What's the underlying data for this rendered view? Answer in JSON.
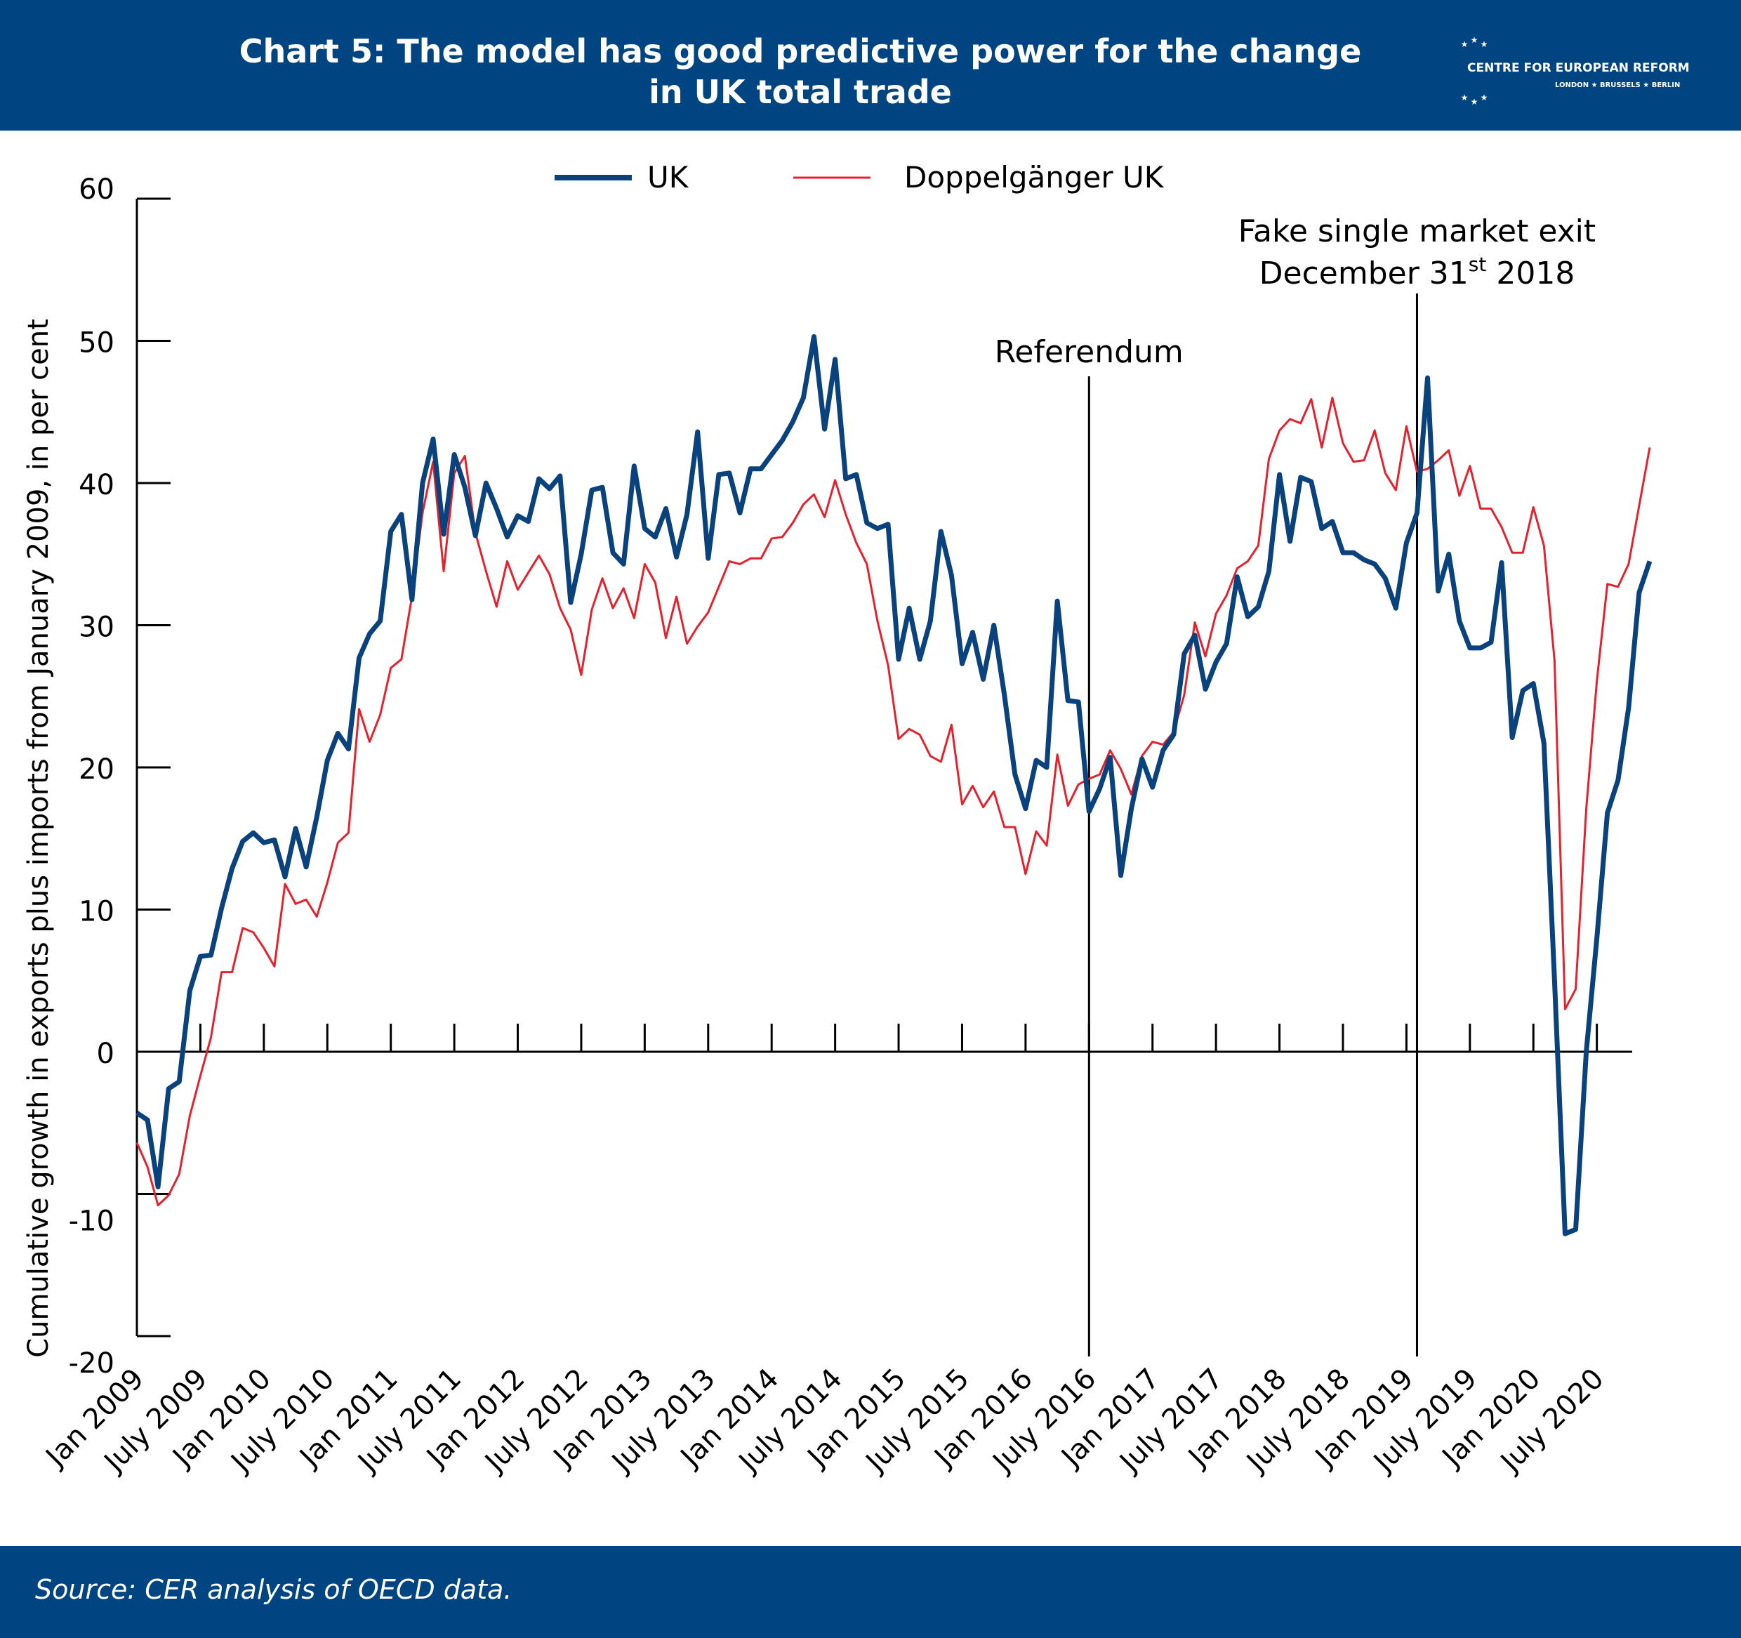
{
  "header": {
    "title_line1": "Chart 5: The model has good predictive power for the change",
    "title_line2": "in UK total trade",
    "logo_text": "CENTRE FOR EUROPEAN REFORM",
    "logo_subtext": "LONDON ★ BRUSSELS ★ BERLIN"
  },
  "colors": {
    "header_bg": "#004582",
    "uk": "#0a427e",
    "doppel": "#e3222e",
    "axis": "#000000"
  },
  "chart_data": {
    "type": "line",
    "title": "Chart 5: The model has good predictive power for the change in UK total trade",
    "ylabel": "Cumulative growth in exports plus imports from January 2009, in per cent",
    "xlabel": "",
    "ylim": [
      -20,
      60
    ],
    "yticks": [
      -20,
      -10,
      0,
      10,
      20,
      30,
      40,
      50,
      60
    ],
    "xlim": [
      0,
      141
    ],
    "xtick_labels": [
      "Jan 2009",
      "July 2009",
      "Jan 2010",
      "July 2010",
      "Jan 2011",
      "July 2011",
      "Jan 2012",
      "July 2012",
      "Jan 2013",
      "July 2013",
      "Jan 2014",
      "July 2014",
      "Jan 2015",
      "July 2015",
      "Jan 2016",
      "July 2016",
      "Jan 2017",
      "July 2017",
      "Jan 2018",
      "July 2018",
      "Jan 2019",
      "July 2019",
      "Jan 2020",
      "July 2020"
    ],
    "legend_position": "top-center",
    "grid": false,
    "series": [
      {
        "name": "UK",
        "color": "#0a427e",
        "values": [
          -4.3,
          -4.8,
          -9.5,
          -2.6,
          -2.1,
          4.3,
          6.7,
          6.8,
          10.1,
          12.9,
          14.8,
          15.4,
          14.7,
          14.9,
          12.3,
          15.7,
          13.0,
          16.5,
          20.5,
          22.4,
          21.3,
          27.7,
          29.4,
          30.3,
          36.6,
          37.8,
          31.8,
          40.0,
          43.1,
          36.4,
          42.0,
          39.7,
          36.3,
          40.0,
          38.2,
          36.2,
          37.7,
          37.3,
          40.3,
          39.6,
          40.5,
          31.6,
          35.0,
          39.5,
          39.7,
          35.1,
          34.3,
          41.2,
          36.8,
          36.2,
          38.2,
          34.8,
          37.8,
          43.6,
          34.7,
          40.6,
          40.7,
          37.9,
          41.0,
          41.0,
          42.0,
          43.0,
          44.3,
          46.0,
          50.3,
          43.8,
          48.7,
          40.3,
          40.6,
          37.2,
          36.8,
          37.1,
          27.6,
          31.2,
          27.6,
          30.3,
          36.6,
          33.5,
          27.3,
          29.5,
          26.2,
          30.0,
          25.1,
          19.5,
          17.1,
          20.5,
          20.0,
          31.7,
          24.7,
          24.6,
          16.9,
          18.5,
          20.7,
          12.4,
          17.1,
          20.6,
          18.6,
          21.2,
          22.3,
          28.0,
          29.3,
          25.5,
          27.4,
          28.7,
          33.4,
          30.6,
          31.3,
          33.8,
          40.6,
          35.9,
          40.4,
          40.1,
          36.8,
          37.3,
          35.1,
          35.1,
          34.6,
          34.3,
          33.3,
          31.2,
          35.8,
          37.9,
          47.4,
          32.4,
          35.0,
          30.3,
          28.4,
          28.4,
          28.8,
          34.4,
          22.1,
          25.4,
          25.9,
          21.7,
          5.0,
          -12.8,
          -12.5,
          0.0,
          8.0,
          16.8,
          19.1,
          24.2,
          32.3,
          34.5
        ]
      },
      {
        "name": "Doppelgänger UK",
        "color": "#e3222e",
        "values": [
          -6.4,
          -8.1,
          -10.8,
          -10.1,
          -8.6,
          -4.5,
          -1.7,
          1.0,
          5.6,
          5.6,
          8.7,
          8.4,
          7.3,
          6.0,
          11.8,
          10.4,
          10.7,
          9.5,
          11.9,
          14.7,
          15.4,
          24.1,
          21.8,
          23.7,
          27.0,
          27.6,
          32.0,
          37.9,
          41.5,
          33.8,
          40.7,
          41.9,
          36.5,
          33.8,
          31.3,
          34.5,
          32.5,
          33.7,
          34.9,
          33.6,
          31.2,
          29.7,
          26.5,
          31.1,
          33.3,
          31.2,
          32.6,
          30.5,
          34.3,
          33.0,
          29.1,
          32.0,
          28.7,
          29.9,
          30.9,
          32.7,
          34.5,
          34.3,
          34.7,
          34.7,
          36.1,
          36.2,
          37.2,
          38.5,
          39.2,
          37.6,
          40.2,
          37.8,
          35.8,
          34.3,
          30.3,
          27.2,
          22.0,
          22.7,
          22.3,
          20.8,
          20.4,
          23.0,
          17.4,
          18.7,
          17.2,
          18.3,
          15.8,
          15.8,
          12.5,
          15.5,
          14.5,
          20.9,
          17.3,
          18.8,
          19.2,
          19.5,
          21.2,
          19.9,
          18.1,
          20.8,
          21.8,
          21.6,
          22.5,
          25.1,
          30.2,
          27.8,
          30.8,
          32.1,
          34.0,
          34.5,
          35.6,
          41.7,
          43.7,
          44.5,
          44.2,
          45.9,
          42.5,
          46.0,
          42.8,
          41.5,
          41.6,
          43.7,
          40.7,
          39.5,
          44.0,
          40.8,
          41.0,
          41.6,
          42.3,
          39.1,
          41.2,
          38.2,
          38.2,
          36.9,
          35.1,
          35.1,
          38.3,
          35.6,
          27.5,
          3.0,
          4.4,
          17.1,
          26.1,
          32.9,
          32.7,
          34.3,
          38.4,
          42.5
        ]
      }
    ],
    "annotations": [
      {
        "label": "Referendum",
        "x": 90
      },
      {
        "label_line1": "Fake single market exit",
        "label_line2_pre": "December 31",
        "label_line2_sup": "st",
        "label_line2_post": " 2018",
        "x": 121
      }
    ]
  },
  "footer": {
    "source": "Source: CER analysis of OECD data."
  }
}
